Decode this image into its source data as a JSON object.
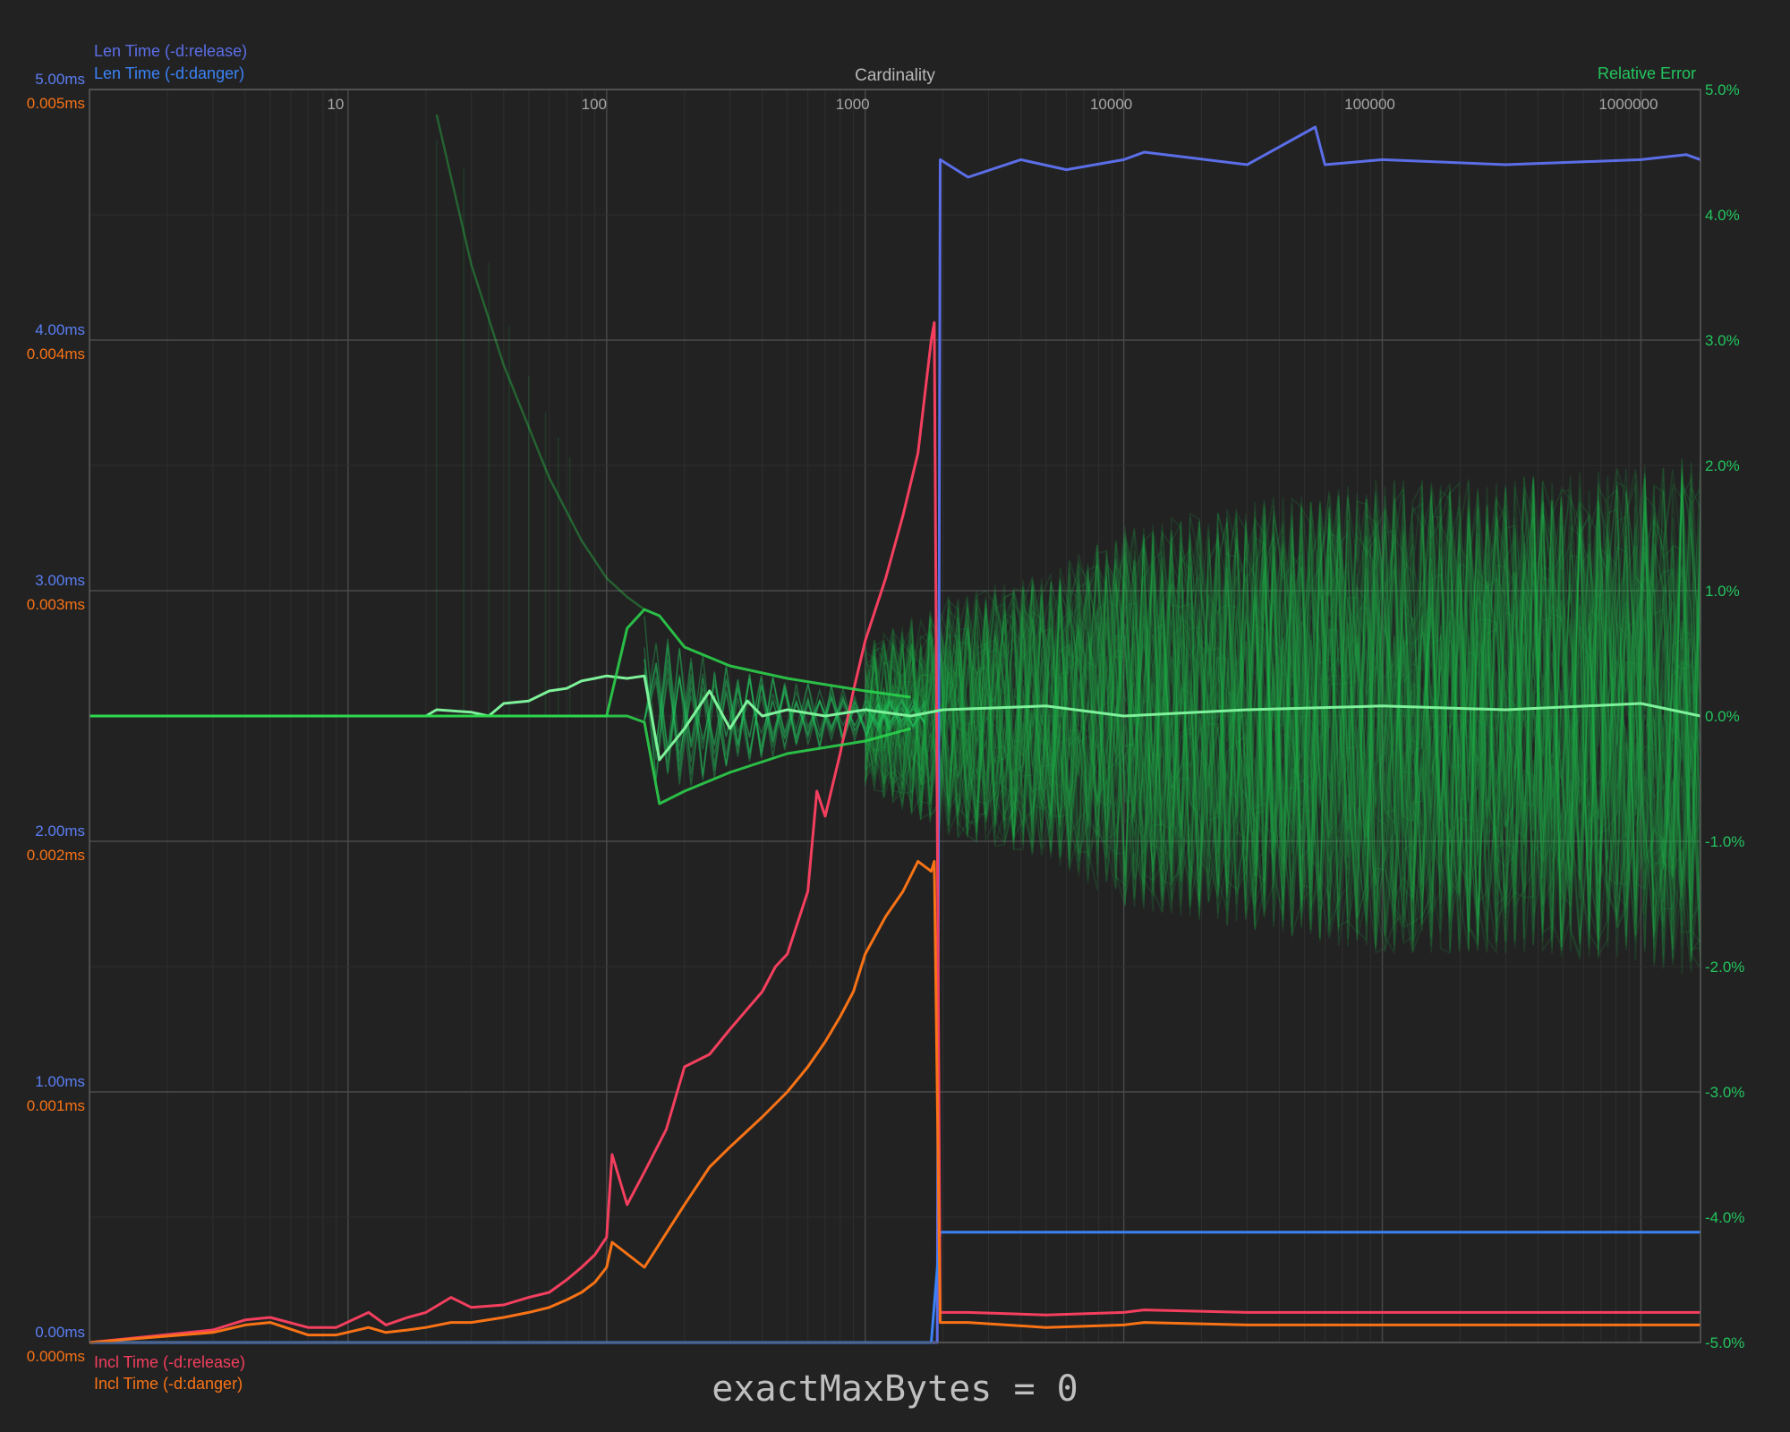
{
  "caption": "exactMaxBytes = 0",
  "legend": {
    "top": [
      {
        "label": "Len Time (-d:release)",
        "color": "#5b6ee8"
      },
      {
        "label": "Len Time (-d:danger)",
        "color": "#3b82f6"
      }
    ],
    "bottom": [
      {
        "label": "Incl Time (-d:release)",
        "color": "#f43f5e"
      },
      {
        "label": "Incl Time (-d:danger)",
        "color": "#f97316"
      }
    ],
    "right": {
      "label": "Relative Error",
      "color": "#22c55e"
    }
  },
  "chart_data": {
    "type": "line",
    "xlabel": "Cardinality",
    "xscale": "log",
    "xlim": [
      1,
      1700000
    ],
    "x_ticks": [
      "10",
      "100",
      "1000",
      "10000",
      "100000",
      "1000000"
    ],
    "left_axis_release": {
      "ylim": [
        0,
        5
      ],
      "ticks": [
        "0.00ms",
        "1.00ms",
        "2.00ms",
        "3.00ms",
        "4.00ms",
        "5.00ms"
      ],
      "color": "#5b7ff5"
    },
    "left_axis_danger": {
      "ylim": [
        0,
        0.005
      ],
      "ticks": [
        "0.000ms",
        "0.001ms",
        "0.002ms",
        "0.003ms",
        "0.004ms",
        "0.005ms"
      ],
      "color": "#f97316"
    },
    "right_axis": {
      "ylim": [
        -5,
        5
      ],
      "ticks": [
        "-5.0%",
        "-4.0%",
        "-3.0%",
        "-2.0%",
        "-1.0%",
        "0.0%",
        "1.0%",
        "2.0%",
        "3.0%",
        "4.0%",
        "5.0%"
      ],
      "color": "#22c55e"
    },
    "grid": true,
    "series": [
      {
        "name": "Len Time (-d:release)",
        "axis": "left_ms",
        "color": "#5b6ee8",
        "x": [
          1,
          100,
          1000,
          1900,
          1950,
          2500,
          4000,
          6000,
          10000,
          12000,
          30000,
          55000,
          60000,
          100000,
          300000,
          1000000,
          1500000,
          1700000
        ],
        "y": [
          0,
          0,
          0,
          0,
          4.72,
          4.65,
          4.72,
          4.68,
          4.72,
          4.75,
          4.7,
          4.85,
          4.7,
          4.72,
          4.7,
          4.72,
          4.74,
          4.72
        ]
      },
      {
        "name": "Len Time (-d:danger)",
        "axis": "left_ms",
        "color": "#3b82f6",
        "x": [
          1,
          100,
          1000,
          1800,
          1950,
          5000,
          20000,
          100000,
          500000,
          1700000
        ],
        "y": [
          0,
          0,
          0,
          0,
          0.44,
          0.44,
          0.44,
          0.44,
          0.44,
          0.44
        ]
      },
      {
        "name": "Incl Time (-d:release)",
        "axis": "left_ms",
        "color": "#f43f5e",
        "x": [
          1,
          3,
          4,
          5,
          7,
          8,
          9,
          12,
          14,
          17,
          20,
          25,
          30,
          40,
          50,
          60,
          70,
          80,
          90,
          100,
          105,
          120,
          140,
          170,
          200,
          250,
          300,
          400,
          450,
          500,
          600,
          650,
          700,
          800,
          900,
          1000,
          1200,
          1400,
          1600,
          1800,
          1850,
          1950,
          2500,
          5000,
          10000,
          12000,
          30000,
          100000,
          500000,
          1700000
        ],
        "y": [
          0,
          0.05,
          0.09,
          0.1,
          0.06,
          0.06,
          0.06,
          0.12,
          0.07,
          0.1,
          0.12,
          0.18,
          0.14,
          0.15,
          0.18,
          0.2,
          0.25,
          0.3,
          0.35,
          0.42,
          0.75,
          0.55,
          0.68,
          0.85,
          1.1,
          1.15,
          1.25,
          1.4,
          1.5,
          1.55,
          1.8,
          2.2,
          2.1,
          2.35,
          2.6,
          2.8,
          3.05,
          3.3,
          3.55,
          4.0,
          4.07,
          0.12,
          0.12,
          0.11,
          0.12,
          0.13,
          0.12,
          0.12,
          0.12,
          0.12
        ]
      },
      {
        "name": "Incl Time (-d:danger)",
        "axis": "left_ms",
        "color": "#f97316",
        "x": [
          1,
          3,
          4,
          5,
          7,
          8,
          9,
          12,
          14,
          17,
          20,
          25,
          30,
          40,
          50,
          60,
          70,
          80,
          90,
          100,
          105,
          140,
          200,
          250,
          300,
          400,
          500,
          600,
          700,
          800,
          900,
          1000,
          1200,
          1400,
          1600,
          1800,
          1850,
          1950,
          2500,
          5000,
          10000,
          12000,
          30000,
          100000,
          500000,
          1700000
        ],
        "y": [
          0,
          0.04,
          0.07,
          0.08,
          0.03,
          0.03,
          0.03,
          0.06,
          0.04,
          0.05,
          0.06,
          0.08,
          0.08,
          0.1,
          0.12,
          0.14,
          0.17,
          0.2,
          0.24,
          0.3,
          0.4,
          0.3,
          0.55,
          0.7,
          0.78,
          0.9,
          1.0,
          1.1,
          1.2,
          1.3,
          1.4,
          1.55,
          1.7,
          1.8,
          1.92,
          1.88,
          1.92,
          0.08,
          0.08,
          0.06,
          0.07,
          0.08,
          0.07,
          0.07,
          0.07,
          0.07
        ]
      },
      {
        "name": "Relative Error",
        "axis": "right_pct",
        "color": "#7ef29a",
        "role": "mean",
        "x": [
          1,
          20,
          22,
          30,
          35,
          40,
          50,
          60,
          70,
          80,
          90,
          100,
          120,
          140,
          160,
          200,
          250,
          300,
          350,
          400,
          500,
          700,
          1000,
          1500,
          2000,
          5000,
          10000,
          30000,
          100000,
          300000,
          1000000,
          1700000
        ],
        "y": [
          0,
          0,
          0.05,
          0.03,
          0.0,
          0.1,
          0.12,
          0.2,
          0.22,
          0.28,
          0.3,
          0.32,
          0.3,
          0.32,
          -0.35,
          -0.1,
          0.2,
          -0.1,
          0.12,
          0.0,
          0.05,
          0.0,
          0.05,
          0.0,
          0.05,
          0.08,
          0.0,
          0.05,
          0.08,
          0.05,
          0.1,
          0.0
        ]
      },
      {
        "name": "Relative Error",
        "axis": "right_pct",
        "color": "#2bd94e",
        "role": "upper-envelope",
        "x": [
          1,
          20,
          21,
          30,
          40,
          60,
          80,
          100,
          120,
          140,
          160,
          200,
          300,
          500,
          1000,
          1500
        ],
        "y": [
          0,
          0,
          0,
          0,
          0,
          0,
          0,
          0,
          0.7,
          0.85,
          0.8,
          0.55,
          0.4,
          0.3,
          0.2,
          0.15
        ]
      },
      {
        "name": "Relative Error",
        "axis": "right_pct",
        "color": "#2bd94e",
        "role": "lower-envelope",
        "x": [
          1,
          120,
          140,
          160,
          200,
          300,
          500,
          1000,
          1500
        ],
        "y": [
          0,
          0,
          -0.05,
          -0.7,
          -0.6,
          -0.45,
          -0.3,
          -0.2,
          -0.1
        ]
      },
      {
        "name": "Relative Error",
        "axis": "right_pct",
        "color": "#2bd94e",
        "role": "decay-curve",
        "x": [
          22,
          30,
          40,
          60,
          80,
          100,
          120,
          140
        ],
        "y": [
          4.8,
          3.6,
          2.8,
          1.9,
          1.4,
          1.1,
          0.95,
          0.85
        ]
      },
      {
        "name": "Relative Error",
        "axis": "right_pct",
        "color": "#16a34a",
        "role": "trial-band-upper",
        "x": [
          1000,
          2000,
          5000,
          10000,
          30000,
          100000,
          300000,
          1000000,
          1700000
        ],
        "y": [
          0.6,
          1.0,
          1.2,
          1.6,
          1.8,
          2.0,
          2.0,
          2.1,
          2.2
        ]
      },
      {
        "name": "Relative Error",
        "axis": "right_pct",
        "color": "#16a34a",
        "role": "trial-band-lower",
        "x": [
          1000,
          2000,
          5000,
          10000,
          30000,
          100000,
          300000,
          1000000,
          1700000
        ],
        "y": [
          -0.6,
          -1.0,
          -1.2,
          -1.6,
          -1.8,
          -2.0,
          -2.0,
          -2.1,
          -2.2
        ]
      }
    ]
  }
}
